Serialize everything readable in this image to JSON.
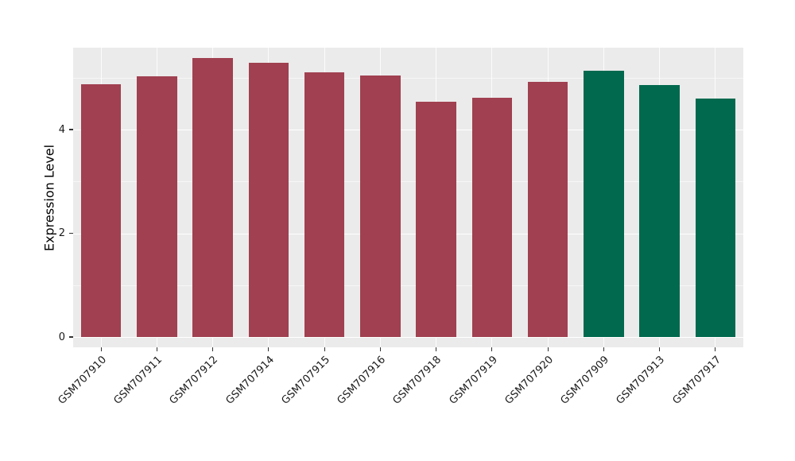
{
  "chart_data": {
    "type": "bar",
    "title": "",
    "xlabel": "",
    "ylabel": "Expression Level",
    "categories": [
      "GSM707910",
      "GSM707911",
      "GSM707912",
      "GSM707914",
      "GSM707915",
      "GSM707916",
      "GSM707918",
      "GSM707919",
      "GSM707920",
      "GSM707909",
      "GSM707913",
      "GSM707917"
    ],
    "values": [
      4.87,
      5.03,
      5.38,
      5.29,
      5.1,
      5.04,
      4.54,
      4.61,
      4.92,
      5.13,
      4.86,
      4.6
    ],
    "groups": [
      "red",
      "red",
      "red",
      "red",
      "red",
      "red",
      "red",
      "red",
      "red",
      "green",
      "green",
      "green"
    ],
    "group_colors": {
      "red": "#A04050",
      "green": "#00694E"
    },
    "ylim": [
      0,
      5.58
    ],
    "ytick_labels": [
      "0",
      "2",
      "4"
    ],
    "ytick_values": [
      0,
      2,
      4
    ],
    "minor_tick_values": [
      1,
      3,
      5
    ],
    "grid": "on",
    "legend": "none",
    "panel_bg": "#EBEBEB",
    "grid_major_color": "#FFFFFF"
  }
}
